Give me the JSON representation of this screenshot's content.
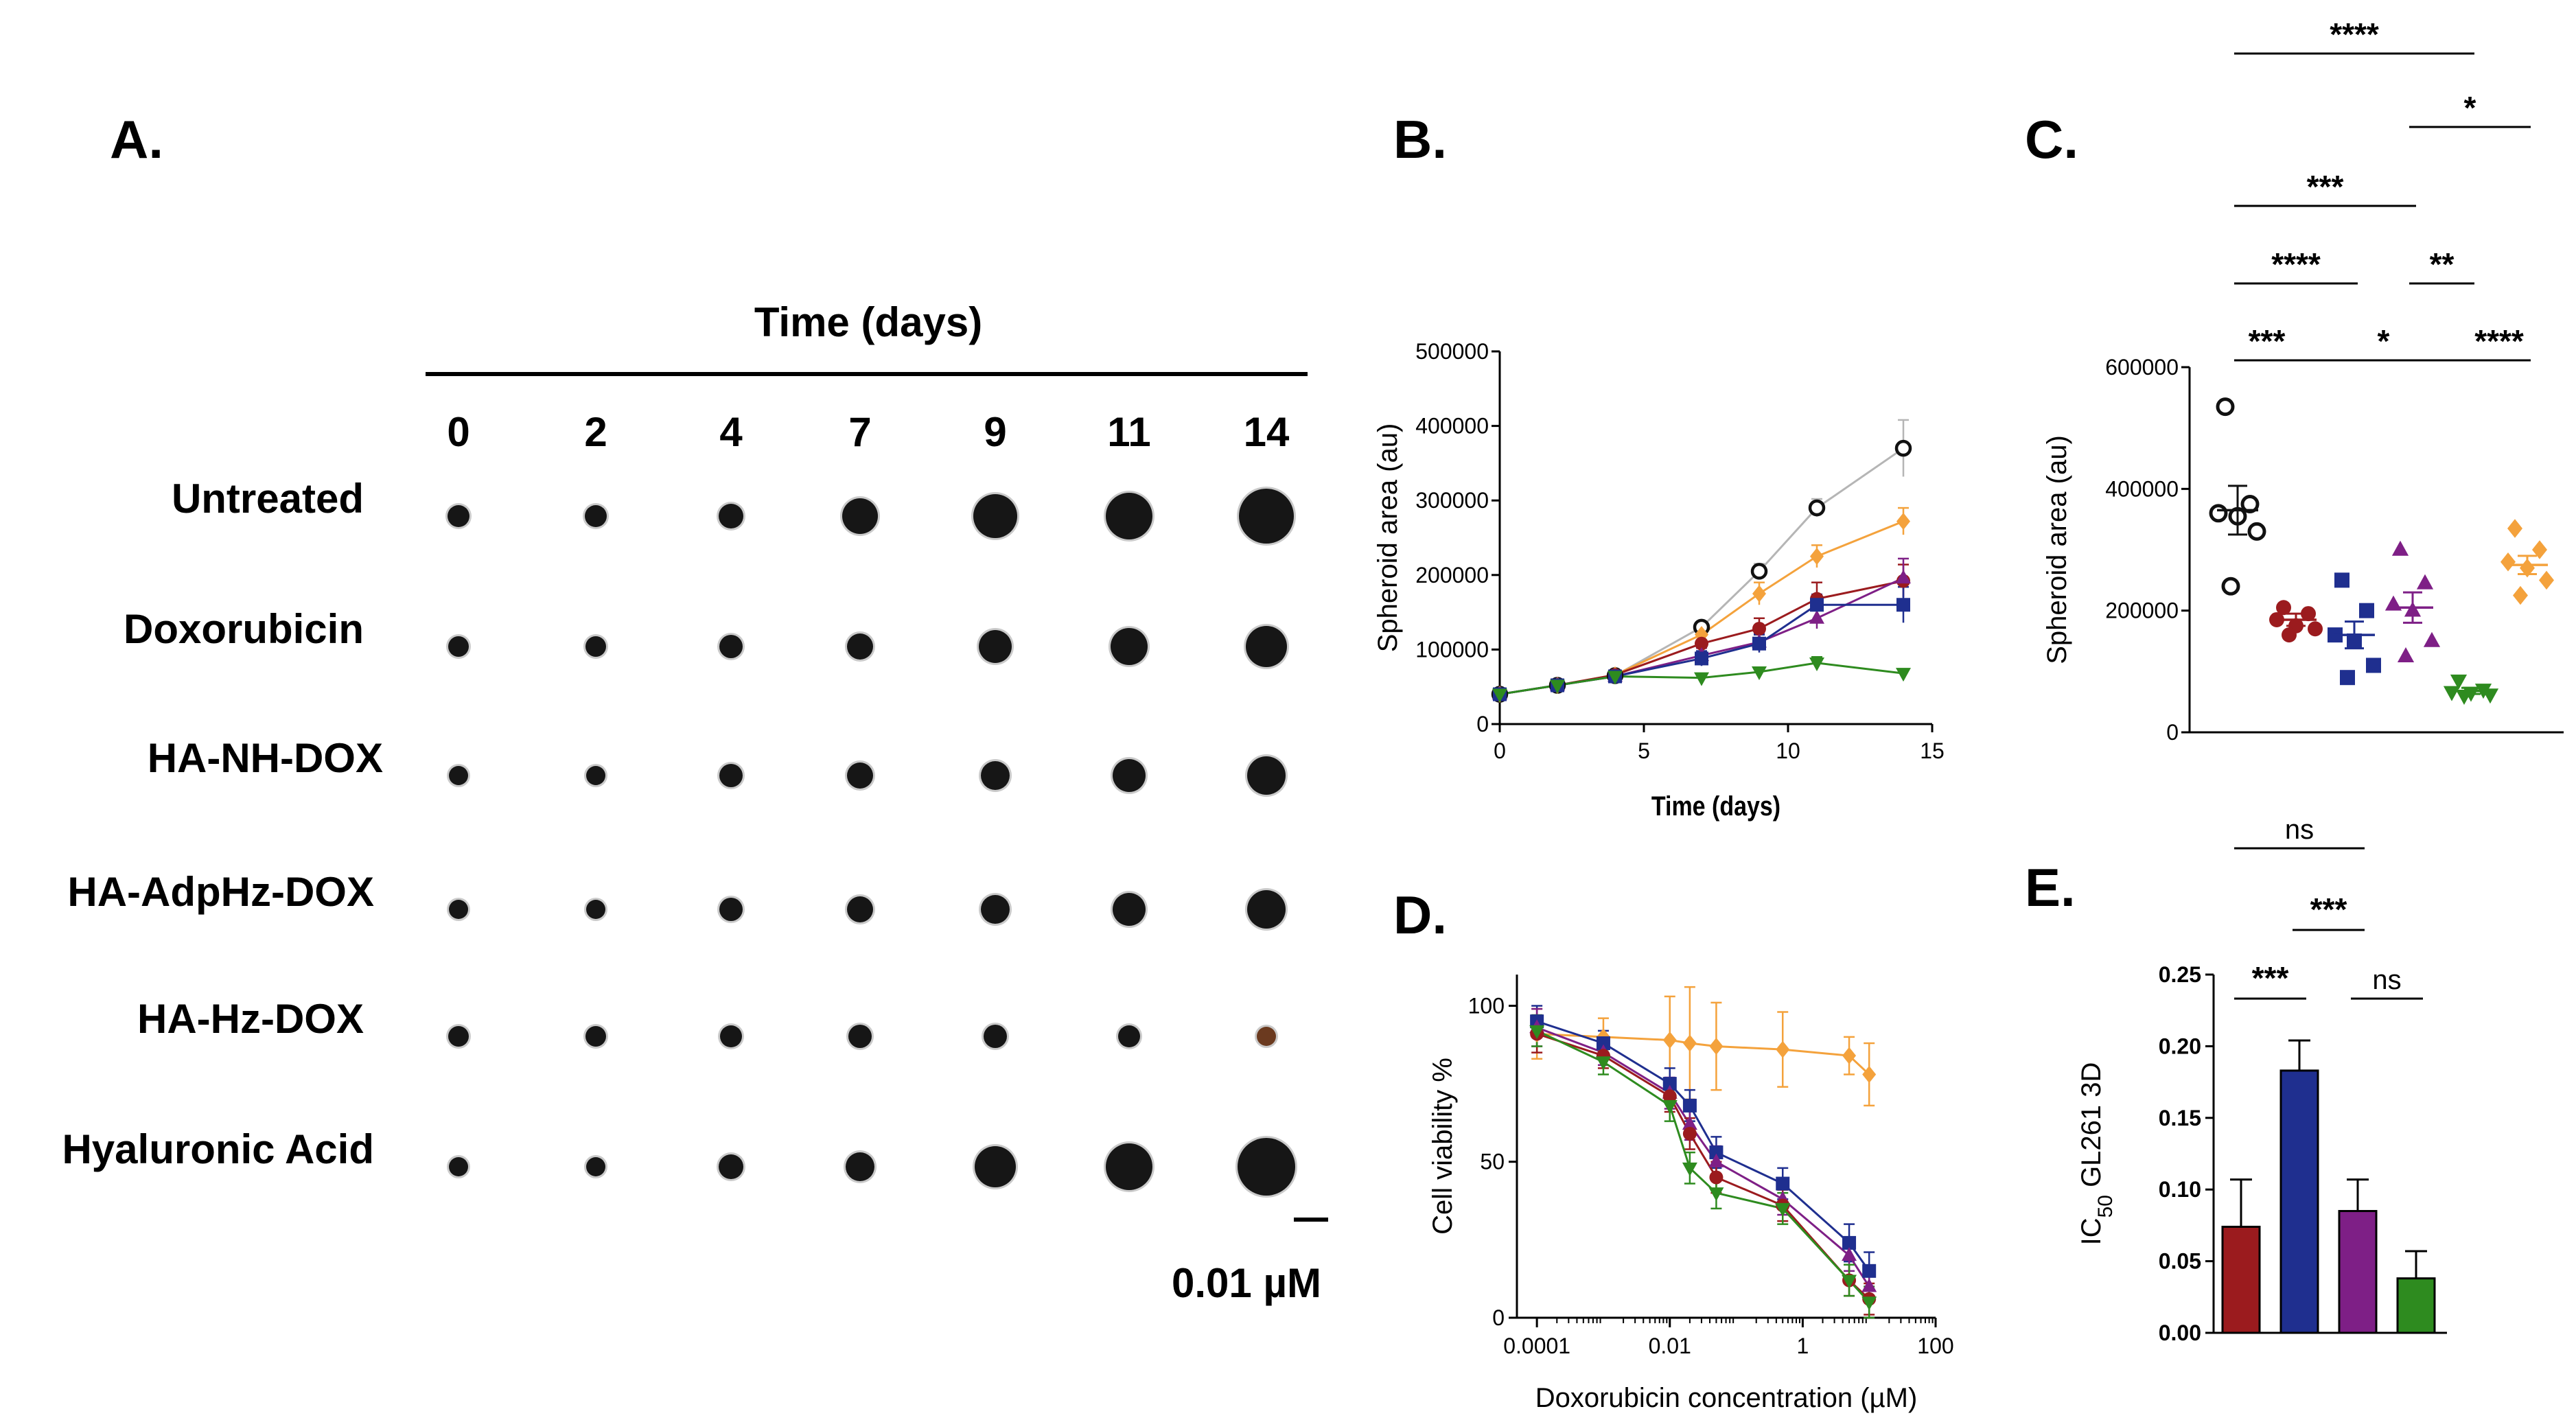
{
  "panels": {
    "a": {
      "label": "A.",
      "header": "Time (days)",
      "days": [
        "0",
        "2",
        "4",
        "7",
        "9",
        "11",
        "14"
      ],
      "rows": [
        "Untreated",
        "Doxorubicin",
        "HA-NH-DOX",
        "HA-AdpHz-DOX",
        "HA-Hz-DOX",
        "Hyaluronic Acid"
      ],
      "scale_label": "0.01 µM"
    },
    "b": {
      "label": "B."
    },
    "c": {
      "label": "C."
    },
    "d": {
      "label": "D."
    },
    "e": {
      "label": "E."
    }
  },
  "colors": {
    "untreated": "#111111",
    "doxorubicin": "#9b1b1e",
    "ha_nh_dox": "#1f2f8f",
    "ha_adphz_dox": "#7e1f86",
    "ha_hz_dox": "#2e8b1f",
    "hyaluronic_acid": "#f4a23c"
  },
  "chart_data": [
    {
      "id": "B",
      "type": "line",
      "xlabel": "Time (days)",
      "ylabel": "Spheroid area (au)",
      "xlim": [
        0,
        15
      ],
      "ylim": [
        0,
        500000
      ],
      "xticks": [
        "0",
        "5",
        "10",
        "15"
      ],
      "yticks": [
        "0",
        "100000",
        "200000",
        "300000",
        "400000",
        "500000"
      ],
      "x": [
        0,
        2,
        4,
        7,
        9,
        11,
        14
      ],
      "series": [
        {
          "name": "Untreated",
          "color": "#111111",
          "marker": "open-circle",
          "values": [
            40000,
            52000,
            65000,
            130000,
            205000,
            290000,
            370000
          ],
          "err": [
            5000,
            5000,
            5000,
            8000,
            10000,
            12000,
            38000
          ]
        },
        {
          "name": "Hyaluronic Acid",
          "color": "#f4a23c",
          "marker": "diamond",
          "values": [
            40000,
            52000,
            66000,
            120000,
            175000,
            225000,
            272000
          ],
          "err": [
            5000,
            5000,
            5000,
            10000,
            15000,
            15000,
            18000
          ]
        },
        {
          "name": "Doxorubicin",
          "color": "#9b1b1e",
          "marker": "circle",
          "values": [
            40000,
            52000,
            66000,
            108000,
            128000,
            168000,
            192000
          ],
          "err": [
            5000,
            5000,
            5000,
            12000,
            14000,
            22000,
            22000
          ]
        },
        {
          "name": "HA-AdpHz-DOX",
          "color": "#7e1f86",
          "marker": "triangle-up",
          "values": [
            40000,
            52000,
            64000,
            92000,
            110000,
            142000,
            196000
          ],
          "err": [
            5000,
            5000,
            5000,
            10000,
            12000,
            14000,
            26000
          ]
        },
        {
          "name": "HA-NH-DOX",
          "color": "#1f2f8f",
          "marker": "square",
          "values": [
            40000,
            52000,
            64000,
            88000,
            108000,
            160000,
            160000
          ],
          "err": [
            5000,
            5000,
            5000,
            10000,
            12000,
            14000,
            24000
          ]
        },
        {
          "name": "HA-Hz-DOX",
          "color": "#2e8b1f",
          "marker": "triangle-down",
          "values": [
            40000,
            52000,
            64000,
            62000,
            70000,
            82000,
            68000
          ],
          "err": [
            5000,
            5000,
            5000,
            5000,
            6000,
            8000,
            6000
          ]
        }
      ]
    },
    {
      "id": "C",
      "type": "scatter",
      "ylabel": "Spheroid area (au)",
      "ylim": [
        0,
        600000
      ],
      "yticks": [
        "0",
        "200000",
        "400000",
        "600000"
      ],
      "groups": [
        {
          "name": "Untreated",
          "color": "#111111",
          "marker": "open-circle",
          "values": [
            535000,
            375000,
            360000,
            355000,
            330000,
            240000
          ],
          "mean": 365000,
          "sem": 40000
        },
        {
          "name": "Doxorubicin",
          "color": "#9b1b1e",
          "marker": "circle",
          "values": [
            205000,
            195000,
            185000,
            175000,
            170000,
            160000
          ],
          "mean": 185000,
          "sem": 10000
        },
        {
          "name": "HA-NH-DOX",
          "color": "#1f2f8f",
          "marker": "square",
          "values": [
            250000,
            200000,
            160000,
            150000,
            110000,
            90000
          ],
          "mean": 160000,
          "sem": 22000
        },
        {
          "name": "HA-AdpHz-DOX",
          "color": "#7e1f86",
          "marker": "triangle-up",
          "values": [
            300000,
            245000,
            210000,
            200000,
            150000,
            125000
          ],
          "mean": 205000,
          "sem": 25000
        },
        {
          "name": "HA-Hz-DOX",
          "color": "#2e8b1f",
          "marker": "triangle-down",
          "values": [
            85000,
            70000,
            66000,
            65000,
            62000,
            60000
          ],
          "mean": 68000,
          "sem": 5000
        },
        {
          "name": "Hyaluronic Acid",
          "color": "#f4a23c",
          "marker": "diamond",
          "values": [
            335000,
            300000,
            280000,
            270000,
            250000,
            225000
          ],
          "mean": 275000,
          "sem": 15000
        }
      ],
      "comparisons": [
        {
          "from": 0,
          "to": 4,
          "label": "****"
        },
        {
          "from": 3,
          "to": 5,
          "label": "*"
        },
        {
          "from": 0,
          "to": 3,
          "label": "***"
        },
        {
          "from": 0,
          "to": 2,
          "label": "****"
        },
        {
          "from": 3,
          "to": 4,
          "label": "**"
        },
        {
          "from": 0,
          "to": 1,
          "label": "***"
        },
        {
          "from": 1,
          "to": 4,
          "label": "*"
        },
        {
          "from": 4,
          "to": 5,
          "label": "****"
        }
      ]
    },
    {
      "id": "D",
      "type": "line",
      "xscale": "log",
      "xlabel": "Doxorubicin concentration (µM)",
      "ylabel": "Cell viability %",
      "xlim": [
        5e-05,
        100
      ],
      "ylim": [
        0,
        110
      ],
      "xticks": [
        "0.0001",
        "0.01",
        "1",
        "100"
      ],
      "yticks": [
        "0",
        "50",
        "100"
      ],
      "x": [
        0.0001,
        0.001,
        0.01,
        0.02,
        0.05,
        0.5,
        5,
        10
      ],
      "series": [
        {
          "name": "Hyaluronic Acid",
          "color": "#f4a23c",
          "marker": "diamond",
          "values": [
            91,
            90,
            89,
            88,
            87,
            86,
            84,
            78
          ],
          "err": [
            8,
            6,
            14,
            18,
            14,
            12,
            6,
            10
          ]
        },
        {
          "name": "HA-NH-DOX",
          "color": "#1f2f8f",
          "marker": "square",
          "values": [
            95,
            88,
            75,
            68,
            53,
            43,
            24,
            15
          ],
          "err": [
            5,
            4,
            5,
            5,
            5,
            5,
            6,
            6
          ]
        },
        {
          "name": "HA-AdpHz-DOX",
          "color": "#7e1f86",
          "marker": "triangle-up",
          "values": [
            93,
            85,
            72,
            62,
            50,
            38,
            20,
            10
          ],
          "err": [
            6,
            4,
            5,
            5,
            5,
            5,
            5,
            5
          ]
        },
        {
          "name": "Doxorubicin",
          "color": "#9b1b1e",
          "marker": "circle",
          "values": [
            91,
            84,
            71,
            59,
            45,
            36,
            12,
            6
          ],
          "err": [
            6,
            4,
            5,
            5,
            5,
            5,
            5,
            5
          ]
        },
        {
          "name": "HA-Hz-DOX",
          "color": "#2e8b1f",
          "marker": "triangle-down",
          "values": [
            92,
            82,
            68,
            48,
            40,
            35,
            12,
            5
          ],
          "err": [
            5,
            4,
            5,
            5,
            5,
            5,
            5,
            5
          ]
        }
      ]
    },
    {
      "id": "E",
      "type": "bar",
      "ylabel": "IC50 GL261 3D",
      "ylim": [
        0,
        0.25
      ],
      "yticks": [
        "0.00",
        "0.05",
        "0.10",
        "0.15",
        "0.20",
        "0.25"
      ],
      "categories": [
        "Doxorubicin",
        "HA-NH-DOX",
        "HA-AdpHz-DOX",
        "HA-Hz-DOX"
      ],
      "colors": [
        "#9b1b1e",
        "#1f2f8f",
        "#7e1f86",
        "#2e8b1f"
      ],
      "values": [
        0.074,
        0.183,
        0.085,
        0.038
      ],
      "err": [
        0.033,
        0.021,
        0.022,
        0.019
      ],
      "comparisons": [
        {
          "from": 0,
          "to": 2,
          "label": "ns"
        },
        {
          "from": 1,
          "to": 2,
          "label": "***"
        },
        {
          "from": 0,
          "to": 1,
          "label": "***"
        },
        {
          "from": 2,
          "to": 3,
          "label": "ns"
        }
      ]
    }
  ]
}
